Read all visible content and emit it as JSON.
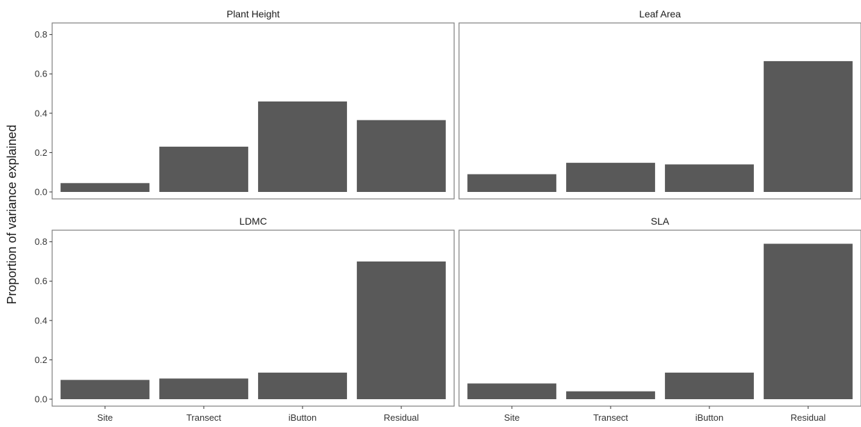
{
  "chart_data": {
    "type": "bar",
    "ylabel": "Proportion of variance explained",
    "xlabel": "",
    "ylim": [
      0,
      0.82
    ],
    "yticks": [
      0.0,
      0.2,
      0.4,
      0.6,
      0.8
    ],
    "ytick_labels": [
      "0.0",
      "0.2",
      "0.4",
      "0.6",
      "0.8"
    ],
    "categories": [
      "Site",
      "Transect",
      "iButton",
      "Residual"
    ],
    "grid": false,
    "bar_color": "#595959",
    "panels": [
      {
        "title": "Plant Height",
        "values": [
          0.045,
          0.23,
          0.46,
          0.365
        ]
      },
      {
        "title": "Leaf Area",
        "values": [
          0.09,
          0.148,
          0.14,
          0.665
        ]
      },
      {
        "title": "LDMC",
        "values": [
          0.098,
          0.105,
          0.135,
          0.7
        ]
      },
      {
        "title": "SLA",
        "values": [
          0.08,
          0.04,
          0.135,
          0.79
        ]
      }
    ]
  }
}
